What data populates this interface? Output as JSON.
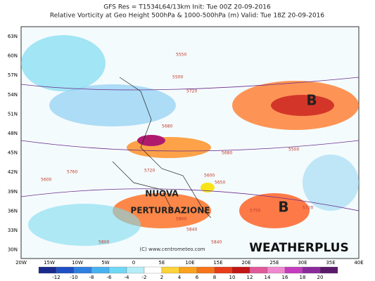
{
  "header": {
    "line1": "GFS Res = T1534L64/13km   Init: Tue 00Z 20-09-2016",
    "line2": "Relative Vorticity at Geo Height 500hPa & 1000-500hPa (m)   Valid: Tue 18Z 20-09-2016"
  },
  "map": {
    "lat_labels": [
      "63N",
      "60N",
      "57N",
      "54N",
      "51N",
      "48N",
      "45N",
      "42N",
      "39N",
      "36N",
      "33N",
      "30N"
    ],
    "lon_labels": [
      "20W",
      "15W",
      "10W",
      "5W",
      "0",
      "5E",
      "10E",
      "15E",
      "20E",
      "25E",
      "30E",
      "35E",
      "40E"
    ],
    "contour_labels": [
      "5550",
      "5720",
      "5500",
      "5680",
      "5650",
      "5680",
      "5760",
      "5720",
      "5600",
      "5600",
      "5720",
      "5840",
      "5750",
      "5800",
      "5800",
      "5840",
      "5500"
    ],
    "annotations": {
      "nuova": "NUOVA",
      "perturbazione": "PERTURBAZIONE",
      "low_east": "B",
      "low_south": "B",
      "brand": "WEATHERPLUS",
      "credit": "(C) www.centrometeo.com"
    }
  },
  "colorbar": {
    "ticks": [
      -12,
      -10,
      -8,
      -6,
      -4,
      -2,
      2,
      4,
      6,
      8,
      10,
      12,
      14,
      16,
      18,
      20
    ]
  }
}
